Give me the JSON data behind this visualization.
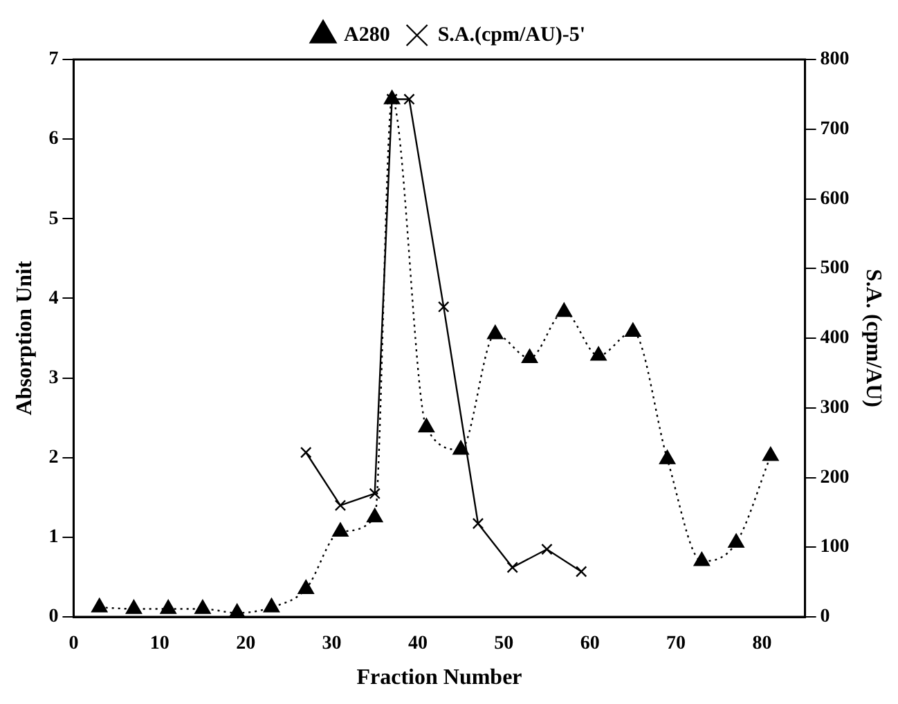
{
  "chart_data": {
    "type": "line",
    "xlabel": "Fraction Number",
    "ylabel": "Absorption Unit",
    "y2label": "S.A. (cpm/AU)",
    "xlim": [
      0,
      85
    ],
    "xticks": [
      0,
      10,
      20,
      30,
      40,
      50,
      60,
      70,
      80
    ],
    "ylim": [
      0,
      7
    ],
    "yticks": [
      0,
      1,
      2,
      3,
      4,
      5,
      6,
      7
    ],
    "y2lim": [
      0,
      800
    ],
    "y2ticks": [
      0,
      100,
      200,
      300,
      400,
      500,
      600,
      700,
      800
    ],
    "grid": false,
    "legend": "top",
    "series": [
      {
        "name": "A280",
        "color": "#000000",
        "marker": "triangle",
        "line_style": "dotted",
        "x": [
          3,
          7,
          11,
          15,
          19,
          23,
          27,
          31,
          35,
          37,
          41,
          45,
          49,
          53,
          57,
          61,
          65,
          69,
          73,
          77,
          81
        ],
        "values": [
          0.12,
          0.1,
          0.1,
          0.1,
          0.05,
          0.12,
          0.35,
          1.07,
          1.25,
          6.5,
          2.38,
          2.1,
          3.55,
          3.25,
          3.83,
          3.28,
          3.58,
          1.98,
          0.7,
          0.93,
          2.02
        ]
      },
      {
        "name": "S.A.(cpm/AU)-5'",
        "color": "#000000",
        "marker": "cross",
        "line_style": "solid",
        "axis": "y2",
        "x": [
          27,
          31,
          35,
          37,
          39,
          43,
          47,
          51,
          55,
          59
        ],
        "values": [
          236,
          160,
          177,
          743,
          743,
          445,
          134,
          71,
          97,
          65
        ]
      }
    ]
  }
}
